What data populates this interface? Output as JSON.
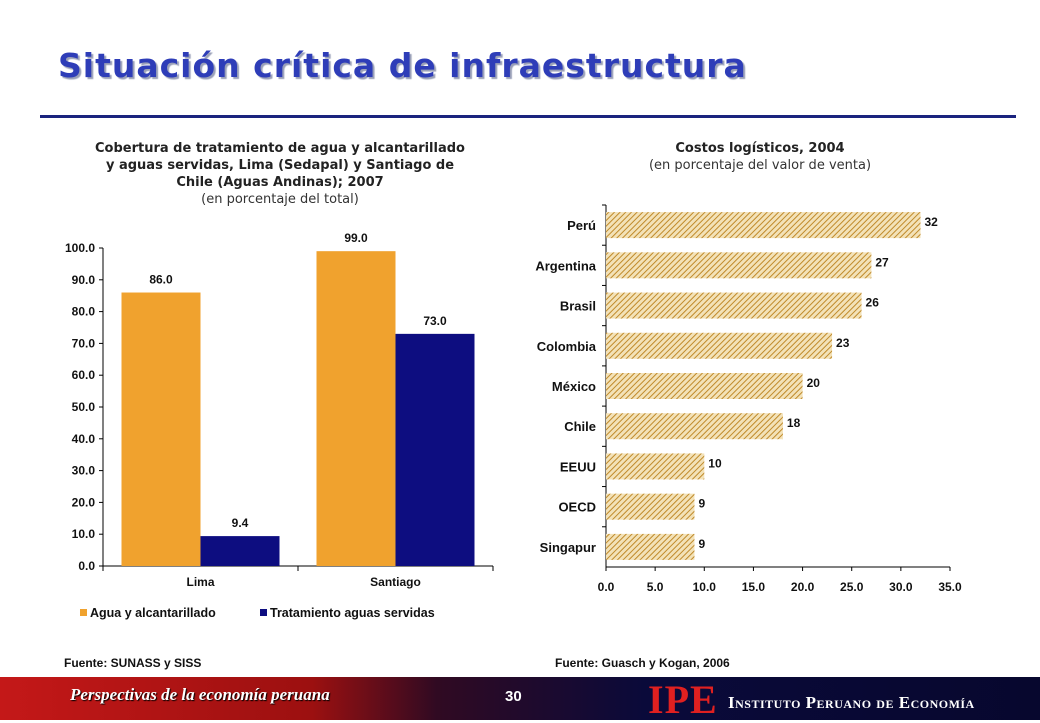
{
  "page": {
    "title": "Situación crítica de infraestructura",
    "footer_left": "Perspectivas de la economía peruana",
    "page_number": "30",
    "logo_text": "IPE",
    "institute_name": "Instituto Peruano de Economía",
    "colors": {
      "title": "#2E3DB8",
      "orange": "#F0A22E",
      "navy": "#0D0D80"
    }
  },
  "chart_data": [
    {
      "type": "bar",
      "title": "Cobertura de tratamiento de agua y alcantarillado y aguas servidas, Lima (Sedapal) y Santiago de Chile (Aguas Andinas); 2007",
      "title_lines": [
        "Cobertura de tratamiento de agua y alcantarillado",
        "y aguas servidas, Lima (Sedapal) y Santiago de",
        "Chile (Aguas Andinas); 2007"
      ],
      "subtitle": "(en porcentaje del total)",
      "categories": [
        "Lima",
        "Santiago"
      ],
      "series": [
        {
          "name": "Agua y alcantarillado",
          "values": [
            86.0,
            99.0
          ],
          "labels": [
            "86.0",
            "99.0"
          ],
          "color": "#F0A22E"
        },
        {
          "name": "Tratamiento aguas servidas",
          "values": [
            9.4,
            73.0
          ],
          "labels": [
            "9.4",
            "73.0"
          ],
          "color": "#0D0D80"
        }
      ],
      "ylim": [
        0,
        100
      ],
      "yticks": [
        "0.0",
        "10.0",
        "20.0",
        "30.0",
        "40.0",
        "50.0",
        "60.0",
        "70.0",
        "80.0",
        "90.0",
        "100.0"
      ],
      "legend_position": "bottom",
      "grid": false,
      "source": "Fuente: SUNASS y SISS"
    },
    {
      "type": "bar",
      "orientation": "horizontal",
      "title": "Costos logísticos, 2004",
      "subtitle": "(en porcentaje del valor de venta)",
      "categories": [
        "Perú",
        "Argentina",
        "Brasil",
        "Colombia",
        "México",
        "Chile",
        "EEUU",
        "OECD",
        "Singapur"
      ],
      "values": [
        32,
        27,
        26,
        23,
        20,
        18,
        10,
        9,
        9
      ],
      "labels": [
        "32",
        "27",
        "26",
        "23",
        "20",
        "18",
        "10",
        "9",
        "9"
      ],
      "xlim": [
        0,
        35
      ],
      "xticks": [
        "0.0",
        "5.0",
        "10.0",
        "15.0",
        "20.0",
        "25.0",
        "30.0",
        "35.0"
      ],
      "bar_fill": "hatched",
      "color": "#C9A24A",
      "grid": false,
      "source": "Fuente: Guasch y Kogan, 2006"
    }
  ]
}
